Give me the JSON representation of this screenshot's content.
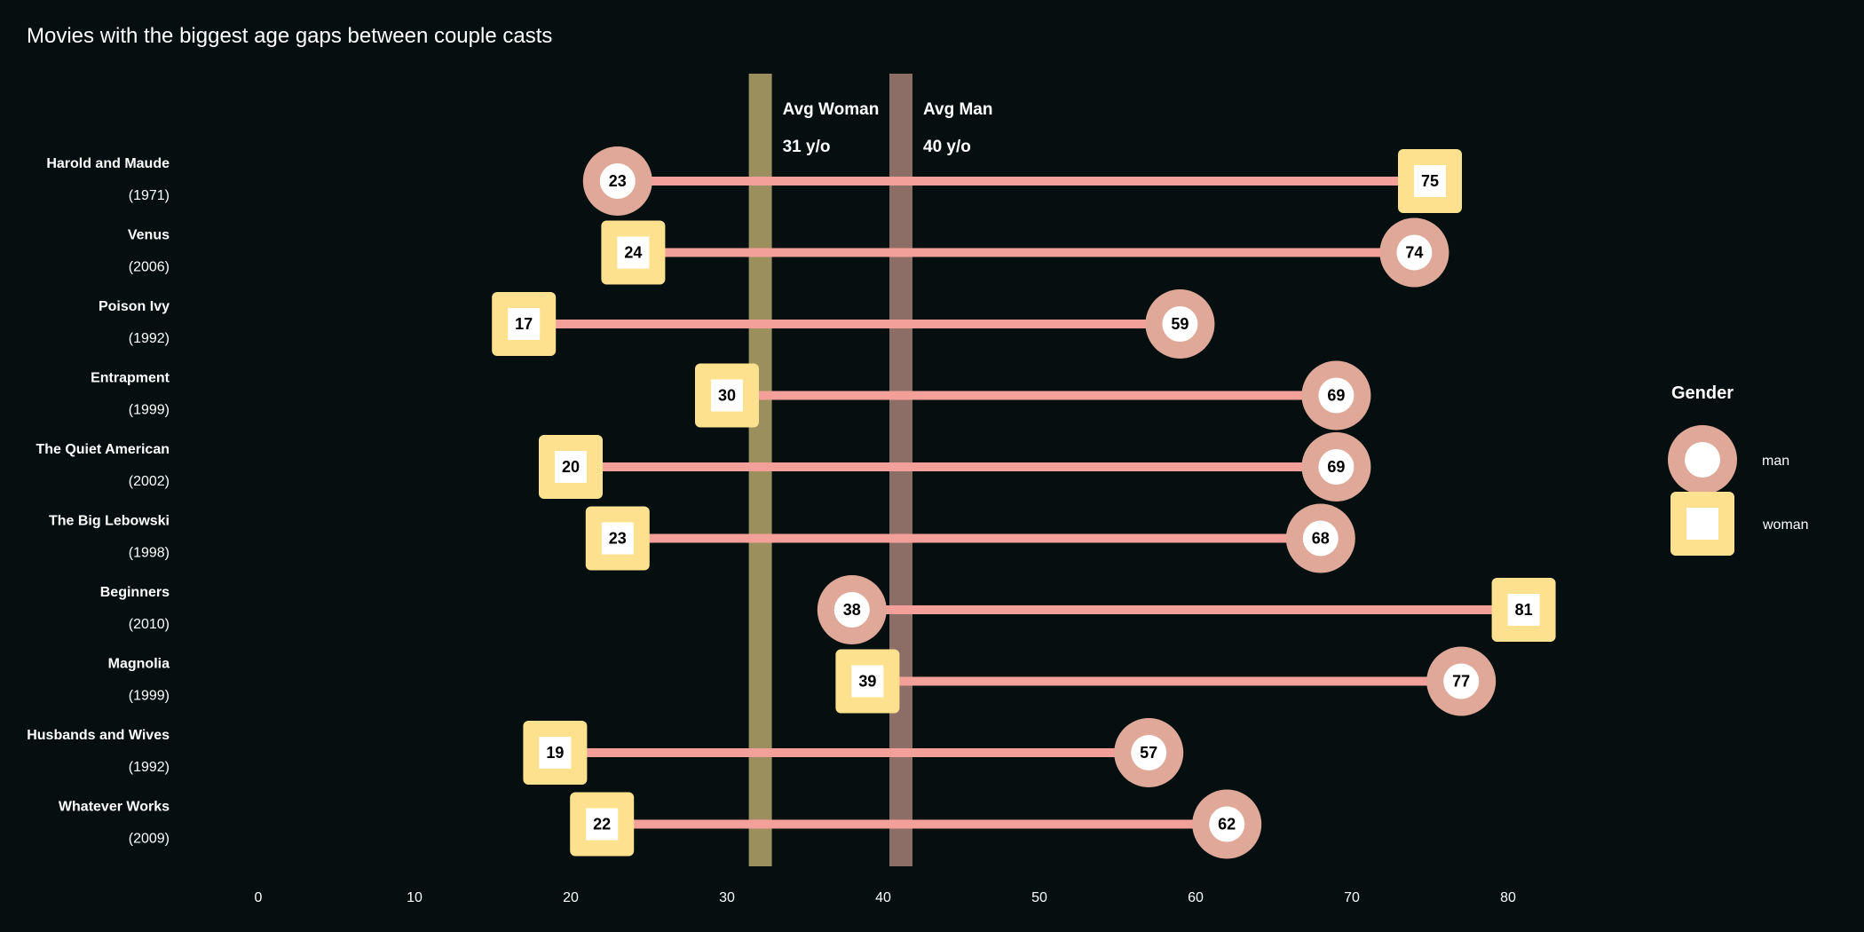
{
  "chart_data": {
    "type": "dumbbell",
    "title": "Movies with the biggest age gaps between couple casts",
    "xlim": [
      0,
      80
    ],
    "ticks": [
      0,
      10,
      20,
      30,
      40,
      50,
      60,
      70,
      80
    ],
    "movies": [
      {
        "title": "Harold and Maude",
        "year": "(1971)",
        "man": 23,
        "woman": 75
      },
      {
        "title": "Venus",
        "year": "(2006)",
        "man": 74,
        "woman": 24
      },
      {
        "title": "Poison Ivy",
        "year": "(1992)",
        "man": 59,
        "woman": 17
      },
      {
        "title": "Entrapment",
        "year": "(1999)",
        "man": 69,
        "woman": 30
      },
      {
        "title": "The Quiet American",
        "year": "(2002)",
        "man": 69,
        "woman": 20
      },
      {
        "title": "The Big Lebowski",
        "year": "(1998)",
        "man": 68,
        "woman": 23
      },
      {
        "title": "Beginners",
        "year": "(2010)",
        "man": 38,
        "woman": 81
      },
      {
        "title": "Magnolia",
        "year": "(1999)",
        "man": 77,
        "woman": 39
      },
      {
        "title": "Husbands and Wives",
        "year": "(1992)",
        "man": 57,
        "woman": 19
      },
      {
        "title": "Whatever Works",
        "year": "(2009)",
        "man": 62,
        "woman": 22
      }
    ],
    "averages": [
      {
        "name": "Avg Woman",
        "value": 31,
        "label": "31 y/o",
        "color": "#9b8f5e"
      },
      {
        "name": "Avg Man",
        "value": 40,
        "label": "40 y/o",
        "color": "#8c6e66"
      }
    ],
    "legend": {
      "title": "Gender",
      "items": [
        {
          "label": "man",
          "shape": "circle",
          "color": "#e0a898"
        },
        {
          "label": "woman",
          "shape": "square",
          "color": "#fde18f"
        }
      ]
    },
    "colors": {
      "background": "#050f0f",
      "line": "#f4a09a",
      "man": "#e0a898",
      "woman": "#fde18f",
      "inner": "#ffffff"
    }
  }
}
